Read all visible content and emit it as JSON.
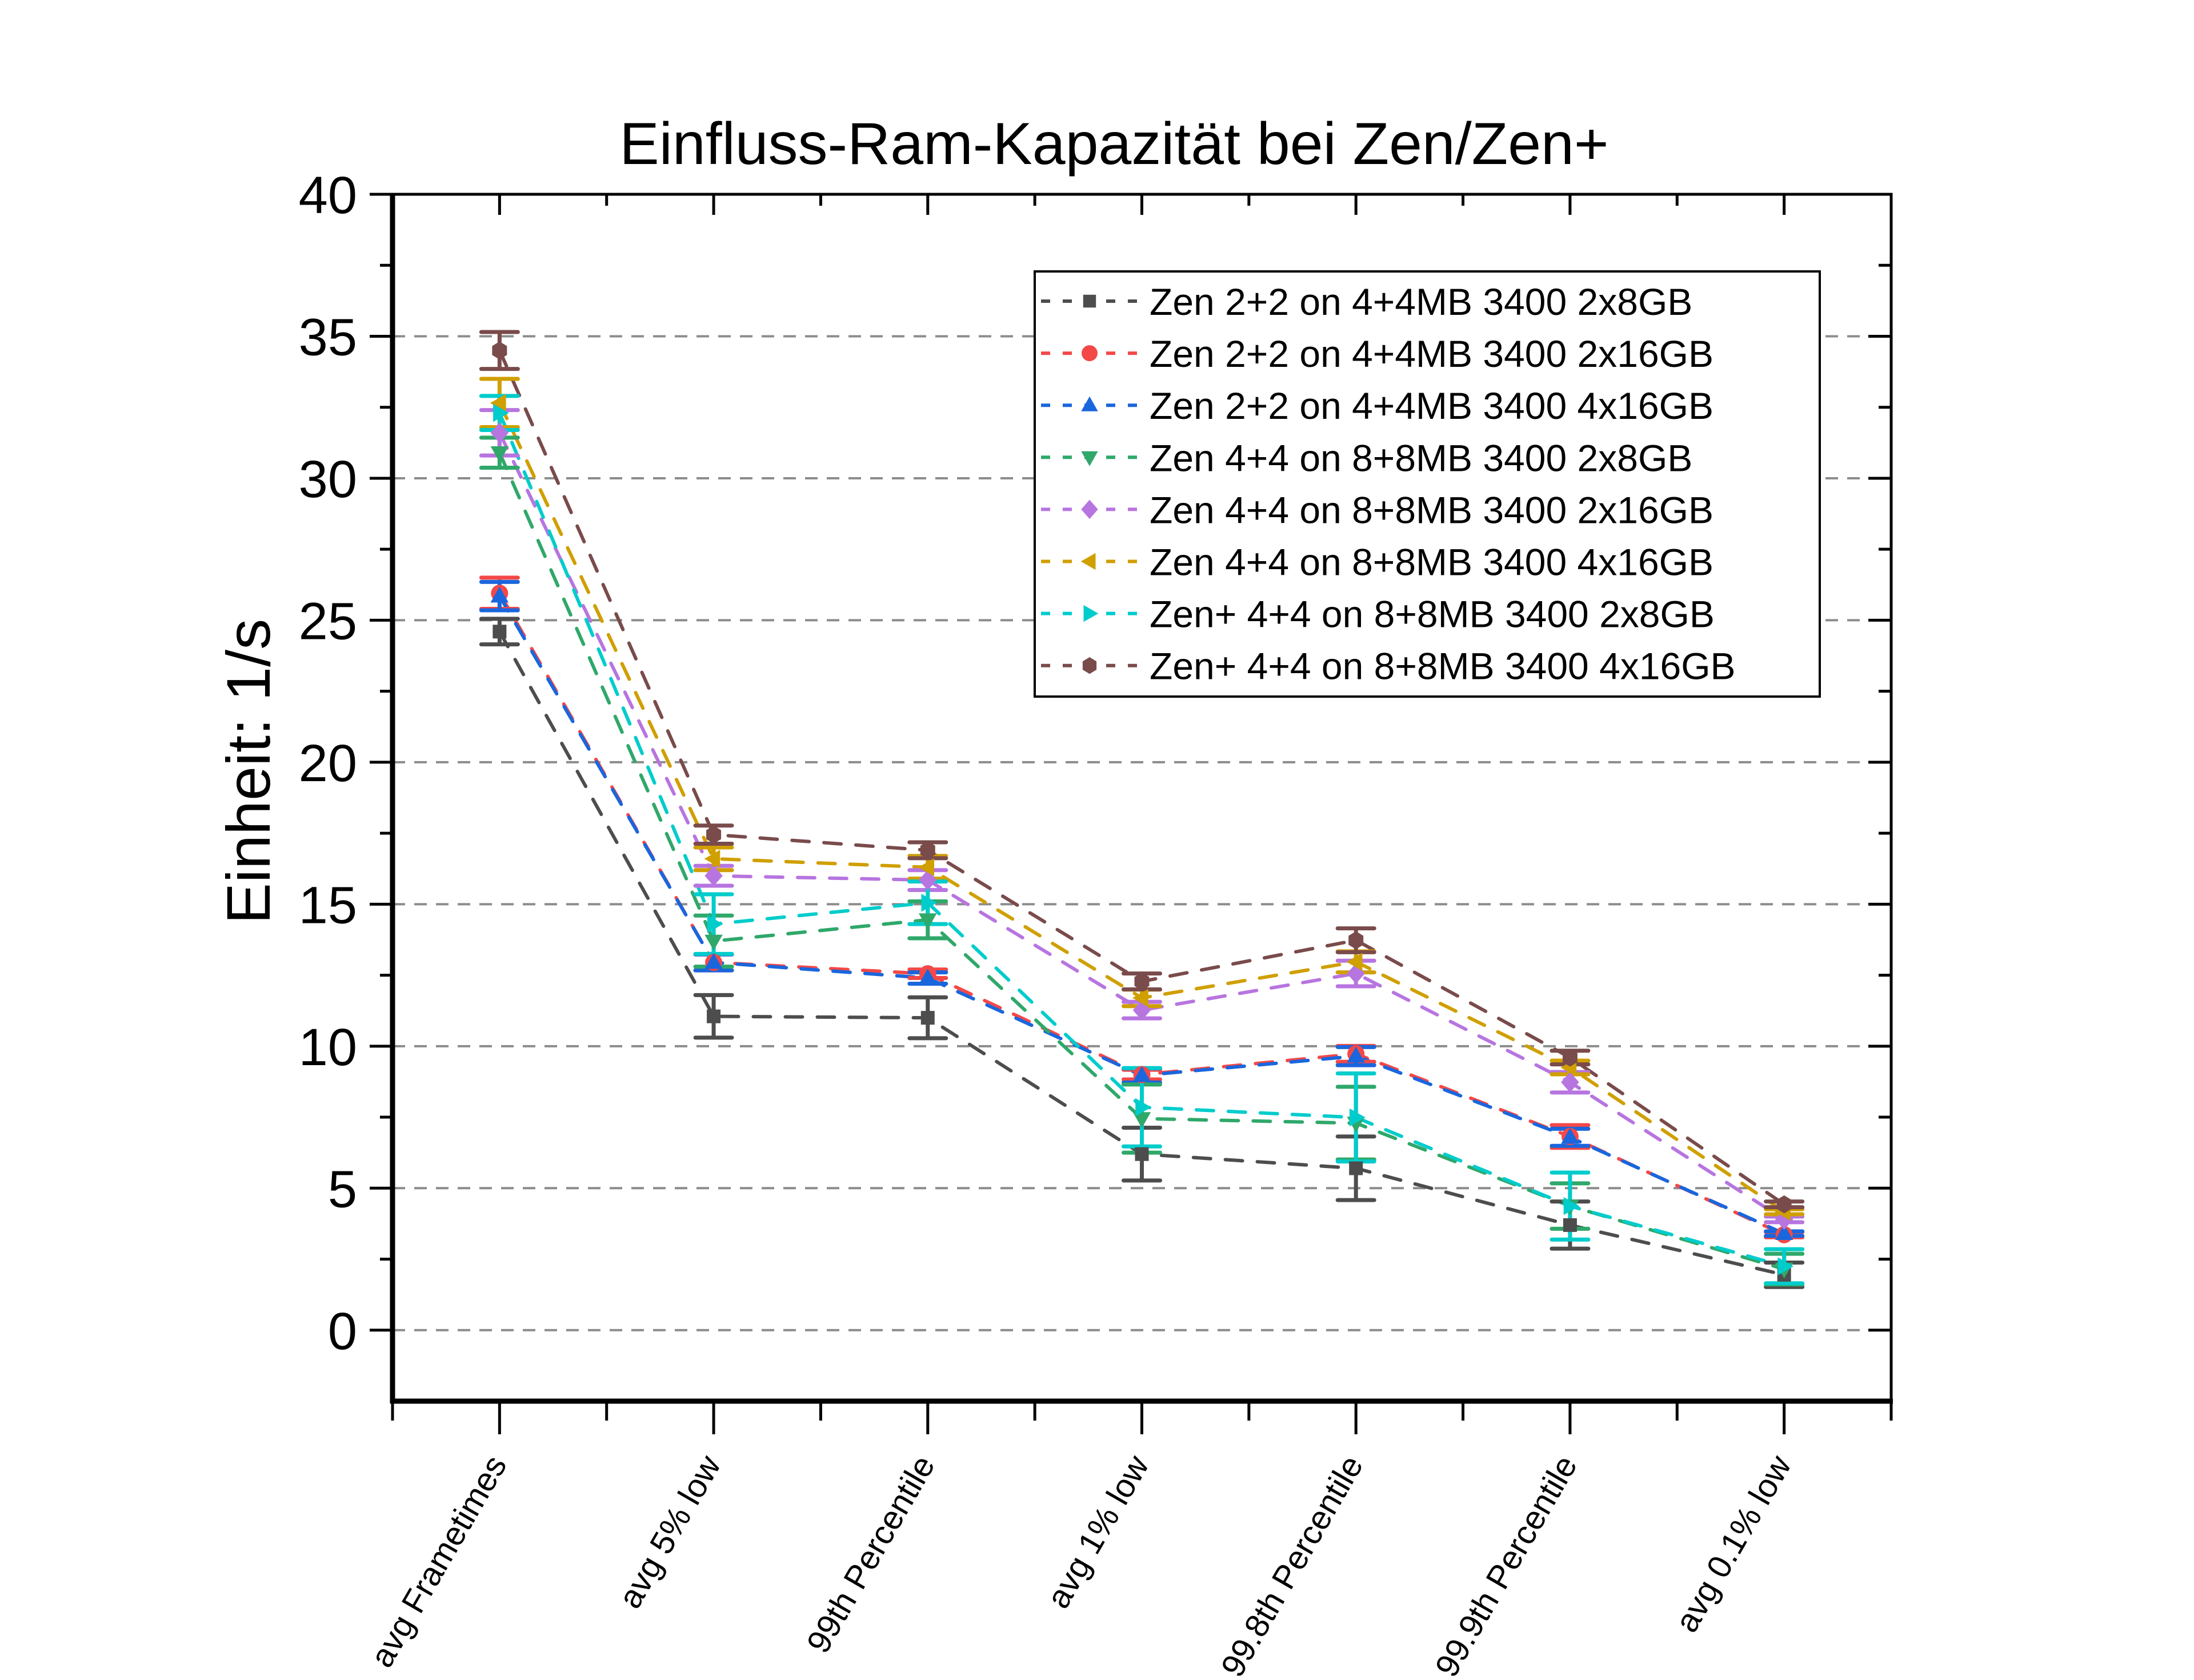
{
  "chart_data": {
    "type": "line",
    "title": "Einfluss-Ram-Kapazität bei Zen/Zen+",
    "xlabel": "",
    "ylabel": "Einheit: 1/s",
    "ylim": [
      -2.5,
      40
    ],
    "yticks": [
      0,
      5,
      10,
      15,
      20,
      25,
      30,
      35,
      40
    ],
    "grid": "horizontal dashed at major y ticks",
    "legend_position": "top-right",
    "line_style": "dashed",
    "error_bars": true,
    "categories": [
      "avg Frametimes",
      "avg 5% low",
      "99th Percentile",
      "avg 1% low",
      "99.8th Percentile",
      "99.9th Percentile",
      "avg 0.1% low"
    ],
    "series": [
      {
        "name": "Zen 2+2 on 4+4MB 3400 2x8GB",
        "color": "#4d4d4d",
        "marker": "square",
        "values": [
          24.6,
          11.05,
          11.0,
          6.2,
          5.7,
          3.7,
          1.95
        ],
        "errors": [
          0.45,
          0.75,
          0.72,
          0.93,
          1.12,
          0.83,
          0.43
        ]
      },
      {
        "name": "Zen 2+2 on 4+4MB 3400 2x16GB",
        "color": "#f44848",
        "marker": "circle",
        "values": [
          25.95,
          12.95,
          12.55,
          9.0,
          9.73,
          6.82,
          3.36
        ],
        "errors": [
          0.55,
          0.28,
          0.15,
          0.17,
          0.28,
          0.4,
          0.09
        ]
      },
      {
        "name": "Zen 2+2 on 4+4MB 3400 4x16GB",
        "color": "#1a66dd",
        "marker": "triangle-up",
        "values": [
          25.85,
          12.95,
          12.4,
          8.97,
          9.65,
          6.79,
          3.4
        ],
        "errors": [
          0.5,
          0.28,
          0.2,
          0.25,
          0.32,
          0.3,
          0.08
        ]
      },
      {
        "name": "Zen 4+4 on 8+8MB 3400 2x8GB",
        "color": "#2fa86a",
        "marker": "triangle-down",
        "values": [
          30.9,
          13.7,
          14.45,
          7.45,
          7.29,
          4.37,
          2.15
        ],
        "errors": [
          0.53,
          0.9,
          0.65,
          1.2,
          1.28,
          0.8,
          0.54
        ]
      },
      {
        "name": "Zen 4+4 on 8+8MB 3400 2x16GB",
        "color": "#b775e0",
        "marker": "diamond",
        "values": [
          31.6,
          16.0,
          15.85,
          11.27,
          12.56,
          8.73,
          3.9
        ],
        "errors": [
          0.8,
          0.35,
          0.35,
          0.29,
          0.45,
          0.36,
          0.1
        ]
      },
      {
        "name": "Zen 4+4 on 8+8MB 3400 4x16GB",
        "color": "#d09f00",
        "marker": "triangle-left",
        "values": [
          32.65,
          16.6,
          16.3,
          11.7,
          12.97,
          9.25,
          4.17
        ],
        "errors": [
          0.85,
          0.4,
          0.4,
          0.29,
          0.37,
          0.24,
          0.09
        ]
      },
      {
        "name": "Zen+ 4+4 on 8+8MB 3400 2x8GB",
        "color": "#00cccc",
        "marker": "triangle-right",
        "values": [
          32.3,
          14.3,
          15.05,
          7.85,
          7.49,
          4.37,
          2.25
        ],
        "errors": [
          0.6,
          1.05,
          0.75,
          1.38,
          1.55,
          1.18,
          0.6
        ]
      },
      {
        "name": "Zen+ 4+4 on 8+8MB 3400 4x16GB",
        "color": "#7a4b4b",
        "marker": "hexagon",
        "values": [
          34.5,
          17.45,
          16.9,
          12.28,
          13.73,
          9.6,
          4.43
        ],
        "errors": [
          0.65,
          0.32,
          0.28,
          0.28,
          0.42,
          0.24,
          0.1
        ]
      }
    ]
  }
}
